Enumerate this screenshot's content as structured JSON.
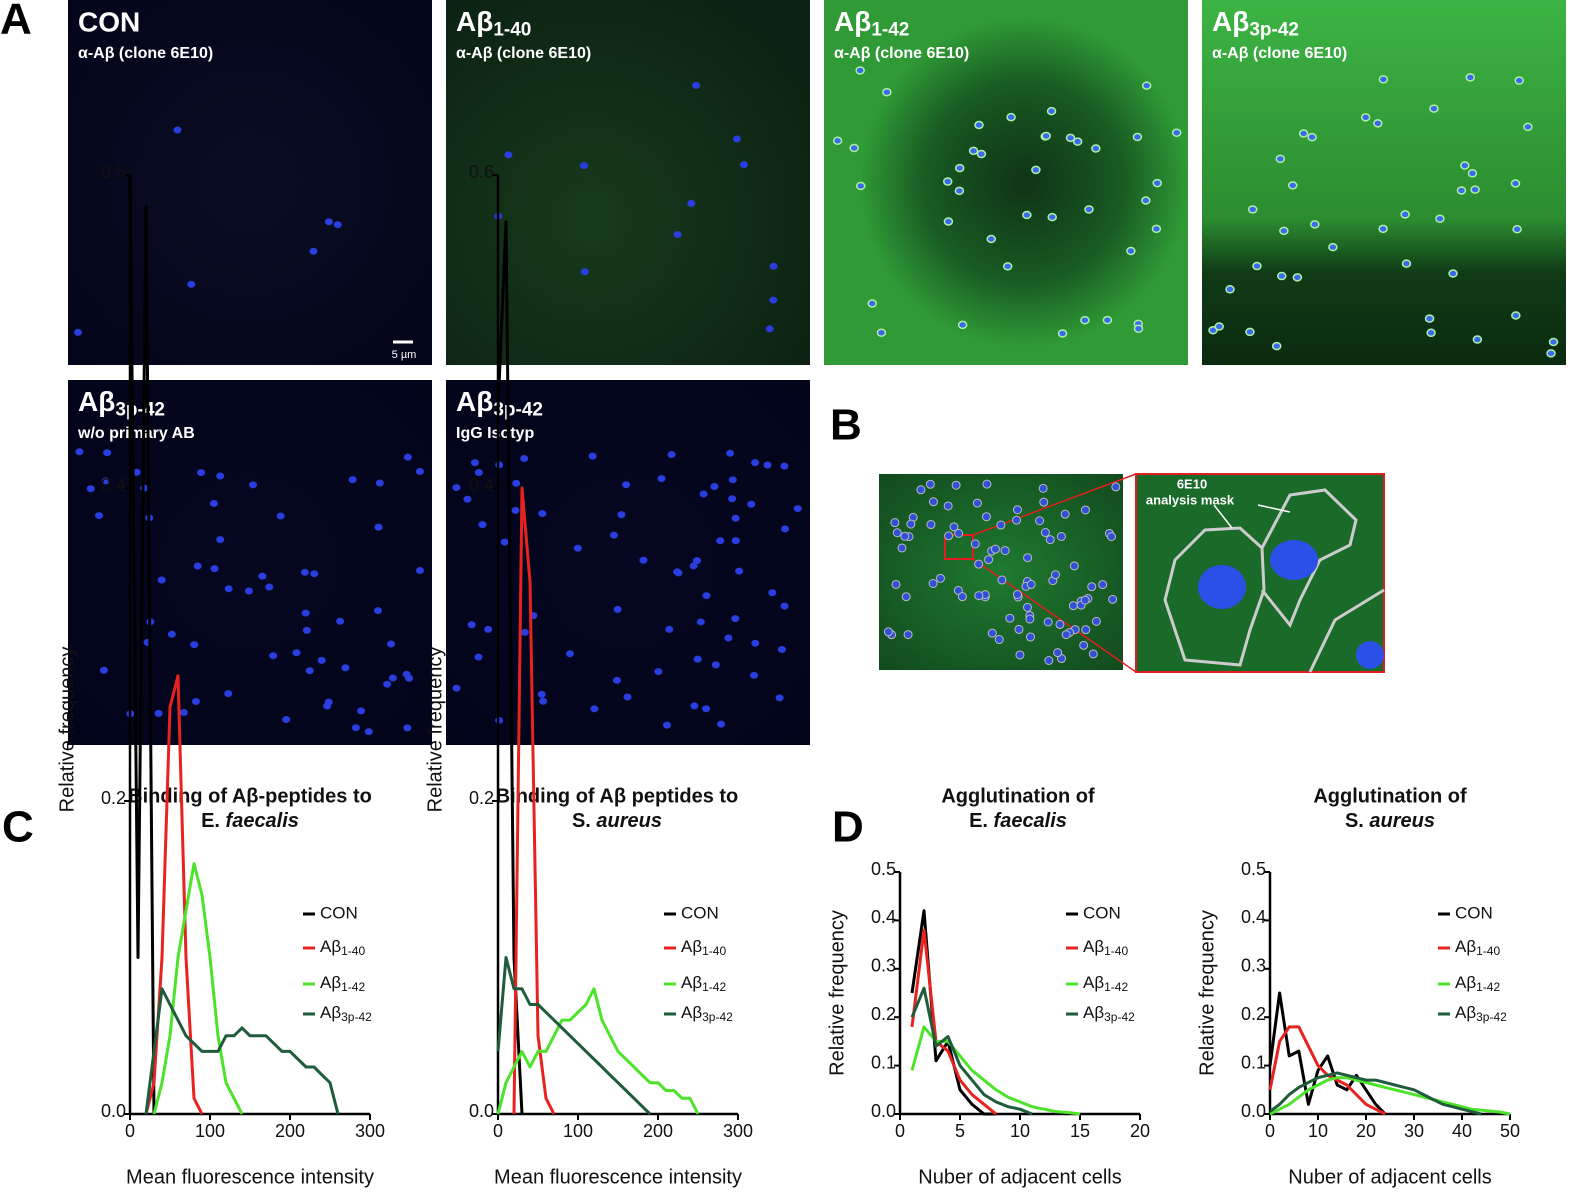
{
  "panel_labels": [
    "A",
    "B",
    "C",
    "D"
  ],
  "images": [
    {
      "title": "CON",
      "subtitle": "α-Aβ (clone 6E10)",
      "scale_bar": "5 µm"
    },
    {
      "title": "Aβ1-40",
      "subtitle": "α-Aβ (clone 6E10)"
    },
    {
      "title": "Aβ1-42",
      "subtitle": "α-Aβ (clone 6E10)"
    },
    {
      "title": "Aβ3p-42",
      "subtitle": "α-Aβ (clone 6E10)"
    },
    {
      "title": "Aβ3p-42",
      "subtitle": "w/o primary AB"
    },
    {
      "title": "Aβ3p-42",
      "subtitle": "IgG Isotyp"
    }
  ],
  "mask_annotation": [
    "6E10",
    "analysis mask"
  ],
  "chart_data": [
    {
      "type": "line",
      "title": [
        "Binding of Aβ-peptides to",
        "E. faecalis"
      ],
      "xlabel": "Mean fluorescence intensity",
      "ylabel": "Relative frequency",
      "x": [
        0,
        10,
        20,
        30,
        40,
        50,
        60,
        70,
        80,
        90,
        100,
        110,
        120,
        130,
        140,
        150,
        160,
        170,
        180,
        190,
        200,
        210,
        220,
        230,
        240,
        250,
        260
      ],
      "series": [
        {
          "name": "CON",
          "color": "#000000",
          "values": [
            0.6,
            0.1,
            0.58,
            0,
            null,
            null,
            null,
            null,
            null,
            null,
            null,
            null,
            null,
            null,
            null,
            null,
            null,
            null,
            null,
            null,
            null,
            null,
            null,
            null,
            null,
            null,
            null
          ]
        },
        {
          "name": "Aβ1-40",
          "color": "#e8231f",
          "values": [
            null,
            null,
            0,
            0.02,
            0.1,
            0.26,
            0.28,
            0.1,
            0.01,
            0,
            null,
            null,
            null,
            null,
            null,
            null,
            null,
            null,
            null,
            null,
            null,
            null,
            null,
            null,
            null,
            null,
            null
          ]
        },
        {
          "name": "Aβ1-42",
          "color": "#4de32a",
          "values": [
            null,
            null,
            null,
            0,
            0.02,
            0.05,
            0.1,
            0.13,
            0.16,
            0.14,
            0.1,
            0.05,
            0.02,
            0.01,
            0,
            null,
            null,
            null,
            null,
            null,
            null,
            null,
            null,
            null,
            null,
            null,
            null
          ]
        },
        {
          "name": "Aβ3p-42",
          "color": "#1e5c3b",
          "values": [
            null,
            null,
            0,
            0.04,
            0.08,
            0.07,
            0.06,
            0.05,
            0.045,
            0.04,
            0.04,
            0.04,
            0.05,
            0.05,
            0.055,
            0.05,
            0.05,
            0.05,
            0.045,
            0.04,
            0.04,
            0.035,
            0.03,
            0.03,
            0.025,
            0.02,
            0
          ]
        }
      ],
      "xlim": [
        0,
        300
      ],
      "xticks": [
        0,
        100,
        200,
        300
      ],
      "ylim": [
        0,
        0.6
      ],
      "yticks": [
        {
          "value": 0,
          "label": "0.0"
        },
        0.2,
        0.4,
        0.6
      ]
    },
    {
      "type": "line",
      "title": [
        "Binding of  Aβ peptides to",
        "S. aureus"
      ],
      "xlabel": "Mean fluorescence intensity",
      "ylabel": "Relative frequency",
      "x": [
        0,
        10,
        20,
        30,
        40,
        50,
        60,
        70,
        80,
        90,
        100,
        110,
        120,
        130,
        140,
        150,
        160,
        170,
        180,
        190,
        200,
        210,
        220,
        230,
        240,
        250
      ],
      "series": [
        {
          "name": "CON",
          "color": "#000000",
          "values": [
            0.45,
            0.57,
            0.1,
            0,
            null,
            null,
            null,
            null,
            null,
            null,
            null,
            null,
            null,
            null,
            null,
            null,
            null,
            null,
            null,
            null,
            null,
            null,
            null,
            null,
            null,
            null
          ]
        },
        {
          "name": "Aβ1-40",
          "color": "#e8231f",
          "values": [
            null,
            null,
            0,
            0.4,
            0.34,
            0.05,
            0.01,
            0,
            null,
            null,
            null,
            null,
            null,
            null,
            null,
            null,
            null,
            null,
            null,
            null,
            null,
            null,
            null,
            null,
            null,
            null
          ]
        },
        {
          "name": "Aβ1-42",
          "color": "#4de32a",
          "values": [
            0,
            0.02,
            0.03,
            0.04,
            0.03,
            0.04,
            0.04,
            0.05,
            0.06,
            0.06,
            0.065,
            0.07,
            0.08,
            0.06,
            0.05,
            0.04,
            0.035,
            0.03,
            0.025,
            0.02,
            0.02,
            0.015,
            0.015,
            0.01,
            0.01,
            0
          ]
        },
        {
          "name": "Aβ3p-42",
          "color": "#1e5c3b",
          "values": [
            0.04,
            0.1,
            0.08,
            0.08,
            0.07,
            0.07,
            0.065,
            0.06,
            0.055,
            0.05,
            0.045,
            0.04,
            0.035,
            0.03,
            0.025,
            0.02,
            0.015,
            0.01,
            0.005,
            0,
            null,
            null,
            null,
            null,
            null,
            null
          ]
        }
      ],
      "xlim": [
        0,
        300
      ],
      "xticks": [
        0,
        100,
        200,
        300
      ],
      "ylim": [
        0,
        0.6
      ],
      "yticks": [
        {
          "value": 0,
          "label": "0.0"
        },
        0.2,
        0.4,
        0.6
      ]
    },
    {
      "type": "line",
      "title": [
        "Agglutination of",
        "E. faecalis"
      ],
      "xlabel": "Nuber of adjacent cells",
      "ylabel": "Relative frequency",
      "x": [
        1,
        2,
        3,
        4,
        5,
        6,
        7,
        8,
        9,
        10,
        11,
        12,
        13,
        14,
        15
      ],
      "series": [
        {
          "name": "CON",
          "color": "#000000",
          "values": [
            0.25,
            0.42,
            0.11,
            0.15,
            0.05,
            0.02,
            0,
            0,
            null,
            null,
            null,
            null,
            null,
            null,
            null
          ]
        },
        {
          "name": "Aβ1-40",
          "color": "#e8231f",
          "values": [
            0.18,
            0.38,
            0.15,
            0.13,
            0.07,
            0.04,
            0.02,
            0,
            null,
            null,
            null,
            null,
            null,
            null,
            null
          ]
        },
        {
          "name": "Aβ1-42",
          "color": "#4de32a",
          "values": [
            0.09,
            0.18,
            0.15,
            0.15,
            0.12,
            0.09,
            0.07,
            0.05,
            0.035,
            0.025,
            0.015,
            0.01,
            0.005,
            0.003,
            0
          ]
        },
        {
          "name": "Aβ3p-42",
          "color": "#1e5c3b",
          "values": [
            0.2,
            0.26,
            0.14,
            0.16,
            0.1,
            0.07,
            0.04,
            0.025,
            0.015,
            0.01,
            0,
            null,
            null,
            null,
            null
          ]
        }
      ],
      "xlim": [
        0,
        20
      ],
      "xticks": [
        0,
        5,
        10,
        15,
        20
      ],
      "ylim": [
        0,
        0.5
      ],
      "yticks": [
        {
          "value": 0,
          "label": "0.0"
        },
        0.1,
        0.2,
        0.3,
        0.4,
        0.5
      ]
    },
    {
      "type": "line",
      "title": [
        "Agglutination of",
        "S. aureus"
      ],
      "xlabel": "Nuber of adjacent cells",
      "ylabel": "Relative frequency",
      "x": [
        0,
        2,
        4,
        6,
        8,
        10,
        12,
        14,
        16,
        18,
        20,
        22,
        24,
        26,
        28,
        30,
        32,
        34,
        36,
        38,
        40,
        42,
        44,
        46,
        48,
        50
      ],
      "series": [
        {
          "name": "CON",
          "color": "#000000",
          "values": [
            0.1,
            0.25,
            0.12,
            0.13,
            0.02,
            0.09,
            0.12,
            0.06,
            0.05,
            0.08,
            0.05,
            0.02,
            0,
            null,
            null,
            null,
            null,
            null,
            null,
            null,
            null,
            null,
            null,
            null,
            null,
            null
          ]
        },
        {
          "name": "Aβ1-40",
          "color": "#e8231f",
          "values": [
            0.05,
            0.15,
            0.18,
            0.18,
            0.14,
            0.1,
            0.08,
            0.07,
            0.06,
            0.04,
            0.02,
            0.01,
            0,
            null,
            null,
            null,
            null,
            null,
            null,
            null,
            null,
            null,
            null,
            null,
            null,
            null
          ]
        },
        {
          "name": "Aβ1-42",
          "color": "#4de32a",
          "values": [
            0,
            0.01,
            0.02,
            0.035,
            0.05,
            0.06,
            0.07,
            0.075,
            0.075,
            0.07,
            0.065,
            0.06,
            0.055,
            0.05,
            0.045,
            0.04,
            0.035,
            0.03,
            0.025,
            0.02,
            0.015,
            0.01,
            0.008,
            0.006,
            0.004,
            0
          ]
        },
        {
          "name": "Aβ3p-42",
          "color": "#1e5c3b",
          "values": [
            0.005,
            0.02,
            0.04,
            0.055,
            0.065,
            0.075,
            0.08,
            0.085,
            0.08,
            0.075,
            0.07,
            0.07,
            0.065,
            0.06,
            0.055,
            0.05,
            0.04,
            0.03,
            0.02,
            0.015,
            0.01,
            0.005,
            0,
            null,
            null,
            null
          ]
        }
      ],
      "xlim": [
        0,
        50
      ],
      "xticks": [
        0,
        10,
        20,
        30,
        40,
        50
      ],
      "ylim": [
        0,
        0.5
      ],
      "yticks": [
        {
          "value": 0,
          "label": "0.0"
        },
        0.1,
        0.2,
        0.3,
        0.4,
        0.5
      ]
    }
  ]
}
